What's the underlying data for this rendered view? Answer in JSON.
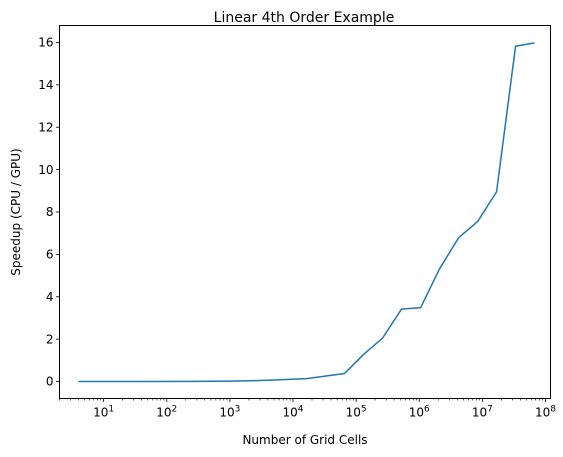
{
  "chart_data": {
    "type": "line",
    "title": "Linear 4th Order Example",
    "xlabel": "Number of Grid Cells",
    "ylabel": "Speedup (CPU / GPU)",
    "xscale": "log",
    "xlim": [
      2,
      120000000
    ],
    "ylim": [
      -0.8,
      16.8
    ],
    "grid": false,
    "yticks": [
      0,
      2,
      4,
      6,
      8,
      10,
      12,
      14,
      16
    ],
    "yticklabels": [
      "0",
      "2",
      "4",
      "6",
      "8",
      "10",
      "12",
      "14",
      "16"
    ],
    "xtick_exponents": [
      1,
      2,
      3,
      4,
      5,
      6,
      7,
      8
    ],
    "xtick_base": "10",
    "series": [
      {
        "color": "#1f77b4",
        "x": [
          4,
          16,
          64,
          256,
          1024,
          4096,
          16384,
          65536,
          131072,
          262144,
          524288,
          1048576,
          2097152,
          4194304,
          8388608,
          16777216,
          33554432,
          67108864
        ],
        "y": [
          0.0,
          0.0,
          0.0,
          0.01,
          0.02,
          0.06,
          0.14,
          0.38,
          1.28,
          2.05,
          3.42,
          3.48,
          5.32,
          6.78,
          7.55,
          8.95,
          15.82,
          15.98
        ]
      }
    ]
  }
}
